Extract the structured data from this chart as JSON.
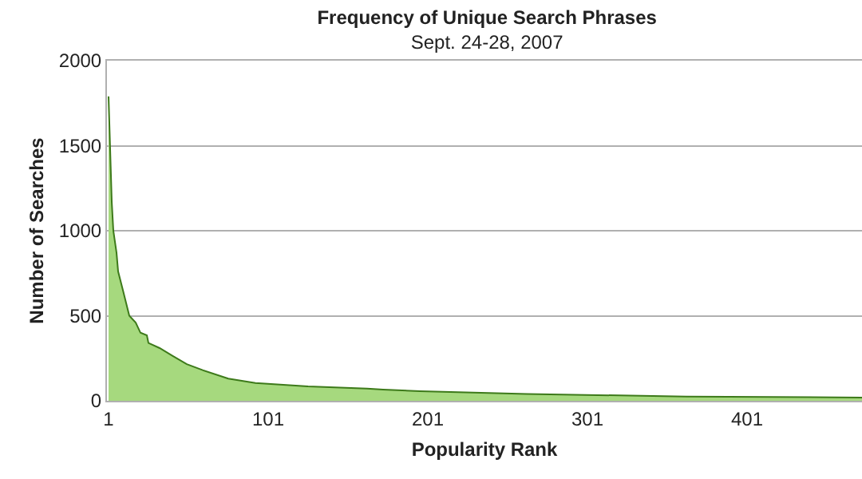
{
  "chart_data": {
    "type": "area",
    "title": "Frequency of Unique Search Phrases",
    "subtitle": "Sept. 24-28, 2007",
    "xlabel": "Popularity Rank",
    "ylabel": "Number of Searches",
    "x": [
      1,
      3,
      4,
      6,
      7,
      10,
      14,
      18,
      21,
      25,
      26,
      33,
      41,
      50,
      60,
      76,
      93,
      126,
      163,
      173,
      196,
      263,
      363,
      473
    ],
    "series": [
      {
        "color": "#a6d97e",
        "values": [
          1790,
          1170,
          1000,
          870,
          760,
          650,
          500,
          460,
          400,
          385,
          340,
          310,
          265,
          215,
          180,
          130,
          105,
          85,
          72,
          66,
          56,
          40,
          25,
          19
        ]
      }
    ],
    "xlim": [
      0,
      473
    ],
    "xticks": [
      1,
      101,
      201,
      301,
      401
    ],
    "ylim": [
      0,
      2000
    ],
    "yticks": [
      0,
      500,
      1000,
      1500,
      2000
    ],
    "grid": "y"
  }
}
